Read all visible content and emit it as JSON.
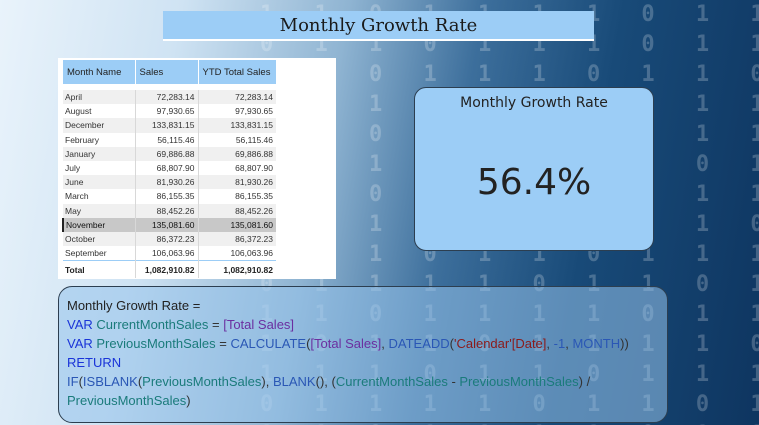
{
  "title": "Monthly Growth Rate",
  "table": {
    "headers": [
      "Month Name",
      "Sales",
      "YTD Total Sales"
    ],
    "rows": [
      {
        "month": "April",
        "sales": "72,283.14",
        "ytd": "72,283.14"
      },
      {
        "month": "August",
        "sales": "97,930.65",
        "ytd": "97,930.65"
      },
      {
        "month": "December",
        "sales": "133,831.15",
        "ytd": "133,831.15"
      },
      {
        "month": "February",
        "sales": "56,115.46",
        "ytd": "56,115.46"
      },
      {
        "month": "January",
        "sales": "69,886.88",
        "ytd": "69,886.88"
      },
      {
        "month": "July",
        "sales": "68,807.90",
        "ytd": "68,807.90"
      },
      {
        "month": "June",
        "sales": "81,930.26",
        "ytd": "81,930.26"
      },
      {
        "month": "March",
        "sales": "86,155.35",
        "ytd": "86,155.35"
      },
      {
        "month": "May",
        "sales": "88,452.26",
        "ytd": "88,452.26"
      },
      {
        "month": "November",
        "sales": "135,081.60",
        "ytd": "135,081.60"
      },
      {
        "month": "October",
        "sales": "86,372.23",
        "ytd": "86,372.23"
      },
      {
        "month": "September",
        "sales": "106,063.96",
        "ytd": "106,063.96"
      }
    ],
    "selected_row": "November",
    "total": {
      "label": "Total",
      "sales": "1,082,910.82",
      "ytd": "1,082,910.82"
    }
  },
  "kpi": {
    "title": "Monthly Growth Rate",
    "value": "56.4%"
  },
  "dax": {
    "line1": "Monthly Growth Rate =",
    "line2": {
      "kw": "VAR",
      "var": "CurrentMonthSales",
      "eq": " = ",
      "measure": "[Total Sales]"
    },
    "line3": {
      "kw": "VAR",
      "var": "PreviousMonthSales",
      "eq": " = ",
      "fn1": "CALCULATE",
      "p1": "(",
      "measure": "[Total Sales]",
      "c1": ", ",
      "fn2": "DATEADD",
      "p2": "(",
      "table": "'Calendar'",
      "column": "[Date]",
      "c2": ", ",
      "num": "-1",
      "c3": ", ",
      "interval": "MONTH",
      "p3": "))"
    },
    "line4": "RETURN",
    "line5": {
      "fn1": "IF",
      "p1": "(",
      "fn2": "ISBLANK",
      "p2": "(",
      "var1": "PreviousMonthSales",
      "p3": "), ",
      "fn3": "BLANK",
      "p4": "(), (",
      "var2": "CurrentMonthSales",
      "minus": " - ",
      "var3": "PreviousMonthSales",
      "p5": ") /"
    },
    "line6": {
      "var": "PreviousMonthSales",
      "p": ")"
    }
  },
  "colors": {
    "accent": "#9ccdf6",
    "kpi_border": "#2c3e50",
    "background_dark": "#0e3560"
  }
}
